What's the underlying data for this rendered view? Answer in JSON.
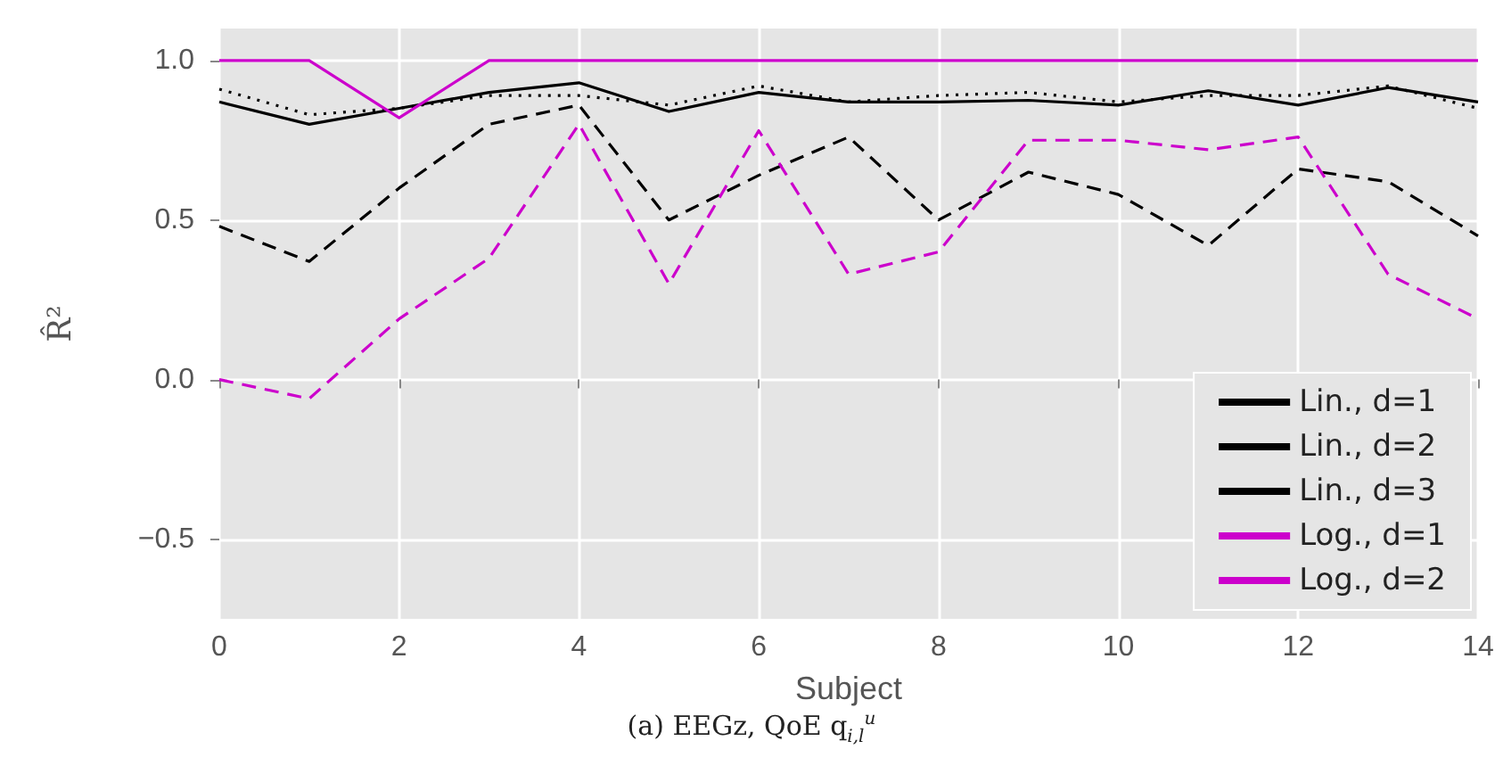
{
  "chart_data": {
    "type": "line",
    "title": "(a) EEGz, QoE q$_{i,l}$$^{u}$",
    "xlabel": "Subject",
    "ylabel": "R̂²",
    "x": [
      0,
      1,
      2,
      3,
      4,
      5,
      6,
      7,
      8,
      9,
      10,
      11,
      12,
      13,
      14
    ],
    "xlim": [
      0,
      14
    ],
    "xticks": [
      0,
      2,
      4,
      6,
      8,
      10,
      12,
      14
    ],
    "ylim": [
      -0.75,
      1.1
    ],
    "yticks": [
      {
        "value": -0.5,
        "label": "−0.5"
      },
      {
        "value": 0,
        "label": "0.0"
      },
      {
        "value": 0.5,
        "label": "0.5"
      },
      {
        "value": 1,
        "label": "1.0"
      }
    ],
    "grid": true,
    "legend": "bottom right",
    "marker": "none",
    "series": [
      {
        "name": "Lin., d=1",
        "color": "#000000",
        "line_style": "dashed",
        "values": [
          0.48,
          0.37,
          0.6,
          0.8,
          0.86,
          0.5,
          0.64,
          0.76,
          0.5,
          0.65,
          0.58,
          0.42,
          0.66,
          0.62,
          0.45
        ]
      },
      {
        "name": "Lin., d=2",
        "color": "#000000",
        "line_style": "solid",
        "values": [
          0.87,
          0.8,
          0.85,
          0.9,
          0.93,
          0.84,
          0.9,
          0.87,
          0.87,
          0.875,
          0.86,
          0.905,
          0.86,
          0.915,
          0.87
        ]
      },
      {
        "name": "Lin., d=3",
        "color": "#000000",
        "line_style": "dotted",
        "values": [
          0.91,
          0.83,
          0.85,
          0.89,
          0.89,
          0.86,
          0.92,
          0.87,
          0.89,
          0.9,
          0.87,
          0.89,
          0.89,
          0.92,
          0.85
        ]
      },
      {
        "name": "Log., d=1",
        "color": "#cc00cc",
        "line_style": "dashed",
        "values": [
          0.0,
          -0.06,
          0.19,
          0.38,
          0.8,
          0.3,
          0.78,
          0.33,
          0.4,
          0.75,
          0.75,
          0.72,
          0.76,
          0.33,
          0.19
        ]
      },
      {
        "name": "Log., d=2",
        "color": "#cc00cc",
        "line_style": "solid",
        "values": [
          1,
          1,
          0.82,
          1,
          1,
          1,
          1,
          1,
          1,
          1,
          1,
          1,
          1,
          1,
          1
        ]
      }
    ]
  }
}
